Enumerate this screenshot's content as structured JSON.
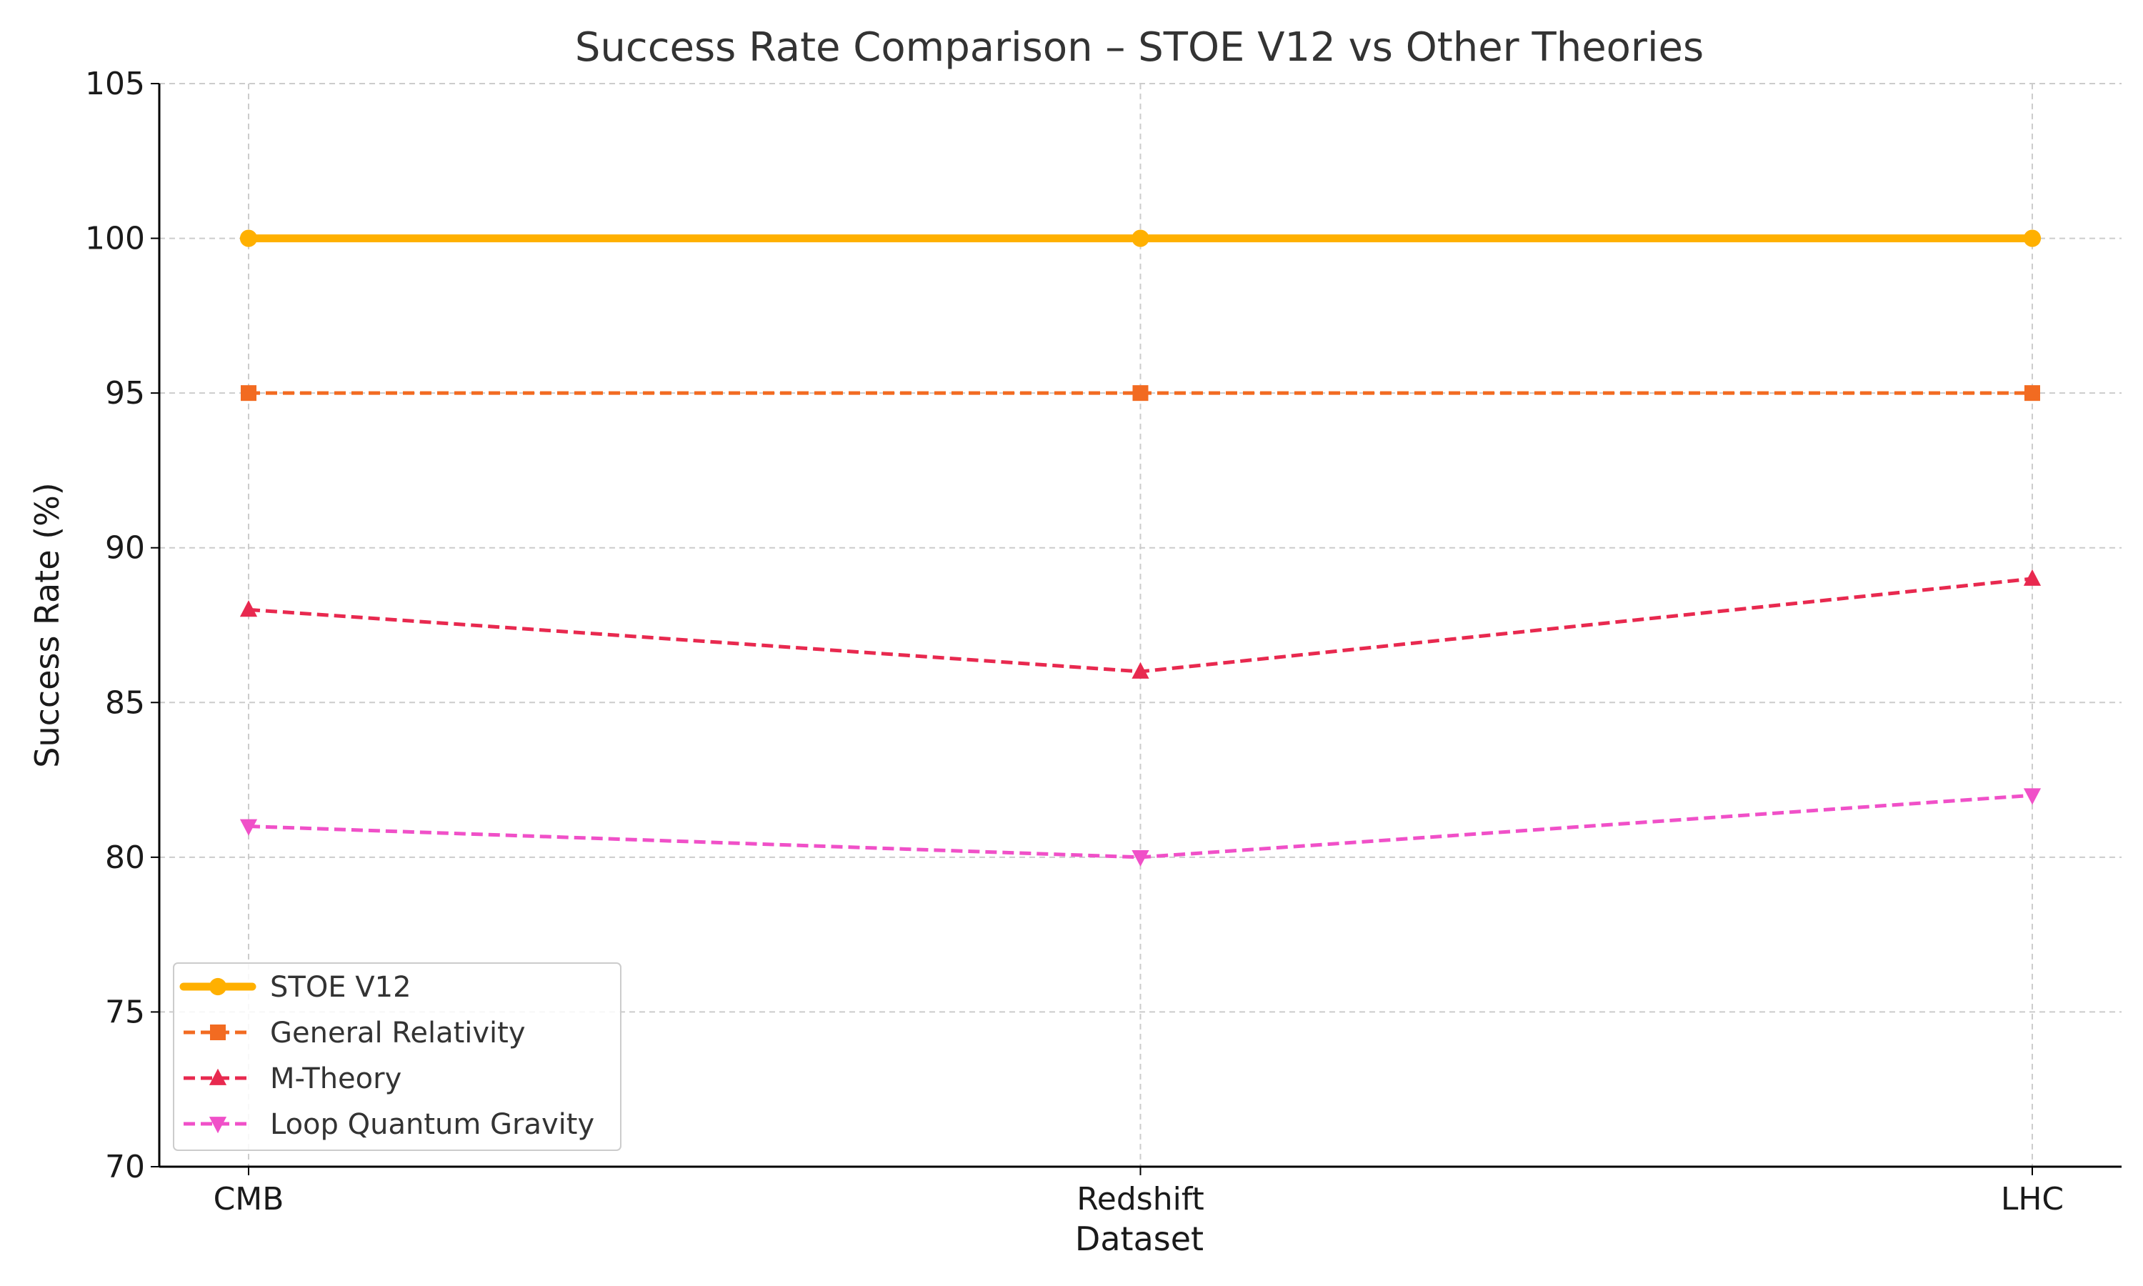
{
  "chart_data": {
    "type": "line",
    "title": "Success Rate Comparison – STOE V12 vs Other Theories",
    "xlabel": "Dataset",
    "ylabel": "Success Rate (%)",
    "categories": [
      "CMB",
      "Redshift",
      "LHC"
    ],
    "ylim": [
      70,
      105
    ],
    "yticks": [
      70,
      75,
      80,
      85,
      90,
      95,
      100,
      105
    ],
    "grid": true,
    "legend_position": "lower-left",
    "series": [
      {
        "name": "STOE V12",
        "values": [
          100,
          100,
          100
        ],
        "color": "#FFB000",
        "marker": "circle",
        "dashed": false
      },
      {
        "name": "General Relativity",
        "values": [
          95,
          95,
          95
        ],
        "color": "#F26B21",
        "marker": "square",
        "dashed": true
      },
      {
        "name": "M-Theory",
        "values": [
          88,
          86,
          89
        ],
        "color": "#E8294F",
        "marker": "triangle-up",
        "dashed": true
      },
      {
        "name": "Loop Quantum Gravity",
        "values": [
          81,
          80,
          82
        ],
        "color": "#F050C8",
        "marker": "triangle-down",
        "dashed": true
      }
    ]
  }
}
